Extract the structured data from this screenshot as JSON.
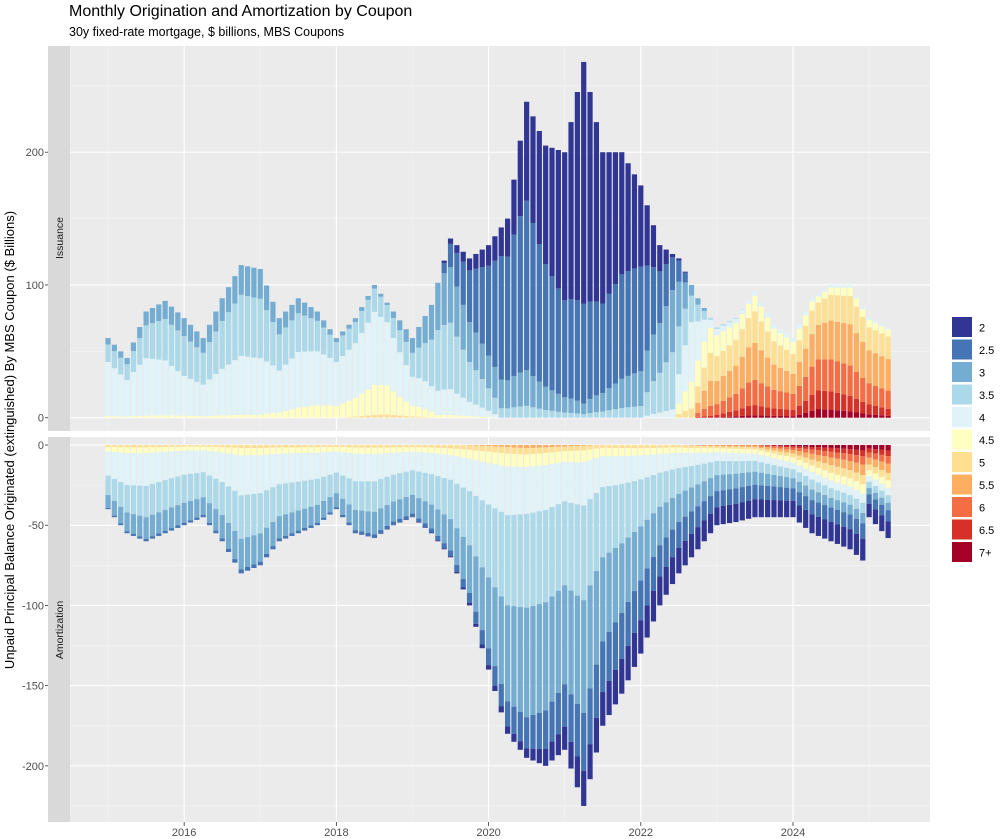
{
  "chart_data": {
    "type": "bar",
    "stacked": true,
    "title": "Monthly Origination and Amortization by Coupon",
    "subtitle": "30y fixed-rate mortgage, $ billions, MBS Coupons",
    "ylabel": "Unpaid Principal Balance Originated (extinguished) By MBS Coupon ($ Billions)",
    "xlabel": "",
    "x_start": "2015-01",
    "x_end": "2025-04",
    "xlim": [
      2014.5,
      2025.8
    ],
    "x_ticks": [
      "2016",
      "2018",
      "2020",
      "2022",
      "2024"
    ],
    "legend_position": "right",
    "coupons": [
      "2",
      "2.5",
      "3",
      "3.5",
      "4",
      "4.5",
      "5",
      "5.5",
      "6",
      "6.5",
      "7+"
    ],
    "colors": [
      "#313695",
      "#4575b4",
      "#74add1",
      "#abd9e9",
      "#e0f3f8",
      "#ffffbf",
      "#fee090",
      "#fdae61",
      "#f46d43",
      "#d73027",
      "#a50026"
    ],
    "panels": [
      {
        "name": "Issuance",
        "ylim": [
          -10,
          280
        ],
        "y_ticks": [
          "0",
          "100",
          "200"
        ],
        "totals_anchors": [
          [
            0,
            60
          ],
          [
            3,
            45
          ],
          [
            6,
            80
          ],
          [
            9,
            88
          ],
          [
            12,
            75
          ],
          [
            15,
            60
          ],
          [
            18,
            90
          ],
          [
            21,
            115
          ],
          [
            24,
            112
          ],
          [
            27,
            75
          ],
          [
            30,
            90
          ],
          [
            33,
            80
          ],
          [
            36,
            60
          ],
          [
            39,
            75
          ],
          [
            42,
            100
          ],
          [
            45,
            80
          ],
          [
            48,
            60
          ],
          [
            51,
            85
          ],
          [
            54,
            135
          ],
          [
            57,
            120
          ],
          [
            60,
            130
          ],
          [
            63,
            150
          ],
          [
            66,
            238
          ],
          [
            69,
            205
          ],
          [
            72,
            200
          ],
          [
            75,
            268
          ],
          [
            78,
            200
          ],
          [
            81,
            200
          ],
          [
            84,
            175
          ],
          [
            87,
            130
          ],
          [
            90,
            120
          ],
          [
            93,
            90
          ],
          [
            96,
            68
          ],
          [
            99,
            75
          ],
          [
            102,
            95
          ],
          [
            105,
            70
          ],
          [
            108,
            60
          ],
          [
            111,
            90
          ],
          [
            114,
            100
          ],
          [
            117,
            100
          ],
          [
            120,
            75
          ],
          [
            123,
            68
          ]
        ],
        "mix_anchors": [
          [
            0,
            [
              0,
              0,
              8,
              22,
              68,
              2,
              0,
              0,
              0,
              0,
              0
            ]
          ],
          [
            12,
            [
              0,
              0,
              18,
              40,
              40,
              2,
              0,
              0,
              0,
              0,
              0
            ]
          ],
          [
            24,
            [
              0,
              0,
              20,
              40,
              38,
              2,
              0,
              0,
              0,
              0,
              0
            ]
          ],
          [
            36,
            [
              0,
              0,
              5,
              25,
              55,
              15,
              0,
              0,
              0,
              0,
              0
            ]
          ],
          [
            44,
            [
              0,
              0,
              2,
              15,
              55,
              25,
              3,
              0,
              0,
              0,
              0
            ]
          ],
          [
            52,
            [
              0,
              0,
              35,
              45,
              18,
              2,
              0,
              0,
              0,
              0,
              0
            ]
          ],
          [
            62,
            [
              15,
              65,
              15,
              5,
              0,
              0,
              0,
              0,
              0,
              0,
              0
            ]
          ],
          [
            75,
            [
              68,
              28,
              3,
              1,
              0,
              0,
              0,
              0,
              0,
              0,
              0
            ]
          ],
          [
            84,
            [
              35,
              45,
              15,
              5,
              0,
              0,
              0,
              0,
              0,
              0,
              0
            ]
          ],
          [
            89,
            [
              2,
              20,
              38,
              35,
              5,
              0,
              0,
              0,
              0,
              0,
              0
            ]
          ],
          [
            92,
            [
              0,
              0,
              8,
              20,
              45,
              20,
              7,
              0,
              0,
              0,
              0
            ]
          ],
          [
            95,
            [
              0,
              0,
              0,
              2,
              8,
              25,
              28,
              25,
              10,
              2,
              0
            ]
          ],
          [
            101,
            [
              0,
              0,
              0,
              0,
              3,
              12,
              25,
              30,
              20,
              8,
              2
            ]
          ],
          [
            108,
            [
              0,
              0,
              0,
              0,
              5,
              15,
              25,
              25,
              20,
              8,
              2
            ]
          ],
          [
            112,
            [
              0,
              0,
              0,
              0,
              2,
              5,
              18,
              28,
              25,
              15,
              7
            ]
          ],
          [
            123,
            [
              0,
              0,
              0,
              0,
              2,
              8,
              25,
              35,
              20,
              8,
              2
            ]
          ]
        ]
      },
      {
        "name": "Amortization",
        "ylim": [
          -235,
          5
        ],
        "y_ticks": [
          "0",
          "-50",
          "-100",
          "-150",
          "-200"
        ],
        "totals_anchors": [
          [
            0,
            -40
          ],
          [
            3,
            -55
          ],
          [
            6,
            -60
          ],
          [
            9,
            -55
          ],
          [
            12,
            -50
          ],
          [
            15,
            -45
          ],
          [
            18,
            -60
          ],
          [
            21,
            -80
          ],
          [
            24,
            -75
          ],
          [
            27,
            -60
          ],
          [
            30,
            -55
          ],
          [
            33,
            -50
          ],
          [
            36,
            -40
          ],
          [
            39,
            -55
          ],
          [
            42,
            -58
          ],
          [
            45,
            -50
          ],
          [
            48,
            -45
          ],
          [
            51,
            -55
          ],
          [
            54,
            -70
          ],
          [
            57,
            -100
          ],
          [
            60,
            -140
          ],
          [
            63,
            -180
          ],
          [
            66,
            -195
          ],
          [
            69,
            -200
          ],
          [
            72,
            -190
          ],
          [
            75,
            -225
          ],
          [
            78,
            -175
          ],
          [
            81,
            -155
          ],
          [
            84,
            -130
          ],
          [
            87,
            -100
          ],
          [
            90,
            -80
          ],
          [
            93,
            -65
          ],
          [
            96,
            -50
          ],
          [
            99,
            -48
          ],
          [
            102,
            -45
          ],
          [
            105,
            -45
          ],
          [
            108,
            -45
          ],
          [
            111,
            -55
          ],
          [
            114,
            -60
          ],
          [
            117,
            -65
          ],
          [
            119,
            -72
          ],
          [
            120,
            -45
          ],
          [
            123,
            -58
          ]
        ],
        "mix_anchors": [
          [
            0,
            [
              0,
              2,
              20,
              30,
              38,
              7,
              3,
              0,
              0,
              0,
              0
            ]
          ],
          [
            12,
            [
              0,
              3,
              25,
              35,
              30,
              5,
              2,
              0,
              0,
              0,
              0
            ]
          ],
          [
            36,
            [
              0,
              3,
              22,
              32,
              33,
              7,
              3,
              0,
              0,
              0,
              0
            ]
          ],
          [
            54,
            [
              1,
              5,
              28,
              35,
              22,
              6,
              3,
              0,
              0,
              0,
              0
            ]
          ],
          [
            66,
            [
              3,
              10,
              35,
              30,
              15,
              4,
              2,
              1,
              0,
              0,
              0
            ]
          ],
          [
            78,
            [
              12,
              18,
              30,
              25,
              11,
              3,
              1,
              0,
              0,
              0,
              0
            ]
          ],
          [
            90,
            [
              20,
              20,
              22,
              20,
              12,
              4,
              2,
              0,
              0,
              0,
              0
            ]
          ],
          [
            102,
            [
              25,
              20,
              18,
              15,
              10,
              6,
              3,
              2,
              1,
              0,
              0
            ]
          ],
          [
            114,
            [
              20,
              15,
              10,
              10,
              8,
              8,
              8,
              8,
              6,
              4,
              3
            ]
          ],
          [
            123,
            [
              18,
              12,
              8,
              8,
              8,
              8,
              8,
              10,
              8,
              6,
              6
            ]
          ]
        ]
      }
    ]
  }
}
